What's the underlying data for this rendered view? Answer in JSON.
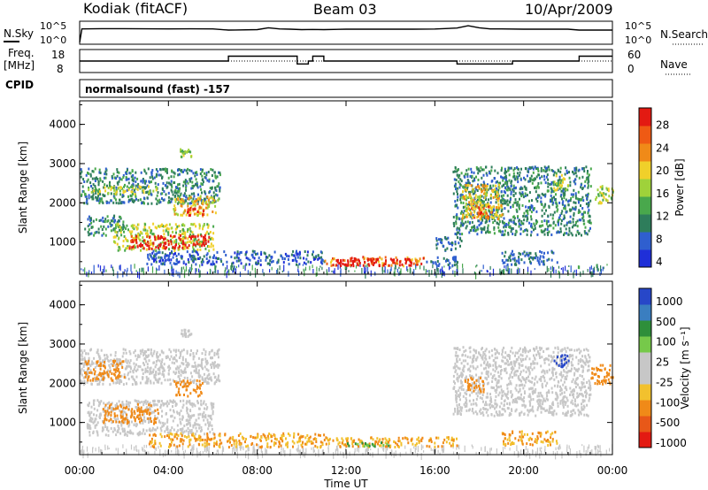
{
  "header": {
    "station": "Kodiak (fitACF)",
    "beam": "Beam 03",
    "date": "10/Apr/2009"
  },
  "top_panels": {
    "nsky_label": "N.Sky",
    "nsky_ticks": [
      "10^5",
      "10^0"
    ],
    "nsearch_label": "N.Search",
    "nsearch_ticks": [
      "10^5",
      "10^0"
    ],
    "freq_label_1": "Freq.",
    "freq_label_2": "[MHz]",
    "freq_ticks": [
      "18",
      "8"
    ],
    "nave_label": "Nave",
    "nave_ticks": [
      "60",
      "0"
    ],
    "cpid_label": "CPID",
    "cpid_text": "normalsound (fast) -157"
  },
  "colors": {
    "power": [
      "#1f2fd8",
      "#2f5fcf",
      "#2e7d5b",
      "#49a84c",
      "#9fd23a",
      "#f0d02a",
      "#f08a18",
      "#ef5a14",
      "#e31a12"
    ],
    "velocity": [
      "#2747c8",
      "#3a7ec0",
      "#2e8f3a",
      "#76c94a",
      "#c7c7c7",
      "#c7c7c7",
      "#f2c12e",
      "#f08a18",
      "#e85818",
      "#e31a12"
    ]
  },
  "chart_data": [
    {
      "type": "line",
      "title": "N.Sky / N.Search",
      "x_unit": "hours UT",
      "ylabel": "N.Sky",
      "y2label": "N.Search",
      "yscale": "log",
      "x": [
        0,
        0.1,
        1,
        2,
        3,
        4,
        5,
        6,
        6.7,
        7,
        8,
        8.5,
        9,
        9.5,
        10,
        10.5,
        11,
        12,
        13,
        14,
        15,
        16,
        17,
        17.5,
        18,
        18.5,
        19,
        20,
        21,
        22,
        22.5,
        23,
        24
      ],
      "series": [
        {
          "name": "N.Sky",
          "values": [
            1,
            3000,
            3500,
            3500,
            3200,
            3000,
            3200,
            3000,
            1500,
            1600,
            2000,
            6000,
            3000,
            2500,
            2000,
            2200,
            2000,
            2500,
            2500,
            2500,
            2500,
            2800,
            5000,
            20000,
            6000,
            3000,
            3000,
            2500,
            2500,
            2500,
            1500,
            1500,
            1500
          ]
        }
      ]
    },
    {
      "type": "line",
      "title": "Freq / Nave",
      "x_unit": "hours UT",
      "ylabel": "Freq. [MHz]",
      "y2label": "Nave",
      "ylim": [
        8,
        18
      ],
      "y2lim": [
        0,
        60
      ],
      "x": [
        0,
        0.2,
        6.7,
        6.7,
        7.5,
        7.5,
        9.8,
        9.8,
        10.3,
        10.3,
        10.5,
        10.5,
        11,
        11,
        17,
        17,
        19.5,
        19.5,
        22.5,
        22.5,
        24
      ],
      "series": [
        {
          "name": "Freq",
          "values": [
            13,
            13,
            13,
            15.5,
            15.5,
            15.5,
            15.5,
            11.5,
            11.5,
            13,
            13,
            15.5,
            15.5,
            13,
            13,
            11.5,
            11.5,
            13,
            13,
            15.5,
            15.5
          ]
        },
        {
          "name": "Nave",
          "values": [
            30,
            30,
            30,
            30,
            30,
            30,
            30,
            30,
            30,
            30,
            30,
            30,
            30,
            30,
            30,
            30,
            30,
            30,
            30,
            30,
            30
          ]
        }
      ]
    },
    {
      "type": "heatmap",
      "title": "Power",
      "xlabel": "Time UT",
      "ylabel": "Slant Range [km]",
      "x_ticks": [
        "00:00",
        "04:00",
        "08:00",
        "12:00",
        "16:00",
        "20:00",
        "00:00"
      ],
      "y_ticks": [
        "1000",
        "2000",
        "3000",
        "4000"
      ],
      "xlim": [
        0,
        24
      ],
      "ylim": [
        180,
        4600
      ],
      "colorbar_label": "Power [dB]",
      "colorbar_ticks": [
        "4",
        "8",
        "12",
        "16",
        "20",
        "24",
        "28"
      ],
      "regions": [
        {
          "t0": 0.0,
          "t1": 6.3,
          "r0": 2000,
          "r1": 2900,
          "value": 10
        },
        {
          "t0": 0.3,
          "t1": 3.5,
          "r0": 2250,
          "r1": 2450,
          "value": 16
        },
        {
          "t0": 4.2,
          "t1": 6.2,
          "r0": 1700,
          "r1": 2200,
          "value": 18
        },
        {
          "t0": 4.8,
          "t1": 5.6,
          "r0": 1700,
          "r1": 1950,
          "value": 24
        },
        {
          "t0": 0.2,
          "t1": 2.0,
          "r0": 1200,
          "r1": 1700,
          "value": 10
        },
        {
          "t0": 1.5,
          "t1": 6.0,
          "r0": 800,
          "r1": 1500,
          "value": 16
        },
        {
          "t0": 2.2,
          "t1": 5.8,
          "r0": 850,
          "r1": 1200,
          "value": 26
        },
        {
          "t0": 4.5,
          "t1": 5.0,
          "r0": 3200,
          "r1": 3400,
          "value": 14
        },
        {
          "t0": 3.0,
          "t1": 11.0,
          "r0": 450,
          "r1": 800,
          "value": 6
        },
        {
          "t0": 11.0,
          "t1": 15.5,
          "r0": 420,
          "r1": 650,
          "value": 22
        },
        {
          "t0": 11.5,
          "t1": 15.0,
          "r0": 430,
          "r1": 600,
          "value": 29
        },
        {
          "t0": 15.5,
          "t1": 17.0,
          "r0": 420,
          "r1": 650,
          "value": 8
        },
        {
          "t0": 16.8,
          "t1": 23.0,
          "r0": 1200,
          "r1": 2950,
          "value": 10
        },
        {
          "t0": 17.2,
          "t1": 19.0,
          "r0": 1600,
          "r1": 2500,
          "value": 18
        },
        {
          "t0": 17.5,
          "t1": 18.6,
          "r0": 1600,
          "r1": 1950,
          "value": 22
        },
        {
          "t0": 21.3,
          "t1": 22.0,
          "r0": 2350,
          "r1": 2750,
          "value": 16
        },
        {
          "t0": 23.2,
          "t1": 24.0,
          "r0": 2000,
          "r1": 2500,
          "value": 16
        },
        {
          "t0": 19.0,
          "t1": 21.5,
          "r0": 450,
          "r1": 800,
          "value": 8
        },
        {
          "t0": 16.0,
          "t1": 17.2,
          "r0": 800,
          "r1": 1150,
          "value": 8
        }
      ]
    },
    {
      "type": "heatmap",
      "title": "Velocity",
      "xlabel": "Time UT",
      "ylabel": "Slant Range [km]",
      "x_ticks": [
        "00:00",
        "04:00",
        "08:00",
        "12:00",
        "16:00",
        "20:00",
        "00:00"
      ],
      "y_ticks": [
        "1000",
        "2000",
        "3000",
        "4000"
      ],
      "xlim": [
        0,
        24
      ],
      "ylim": [
        180,
        4600
      ],
      "colorbar_label": "Velocity [m s⁻¹]",
      "colorbar_ticks": [
        "1000",
        "500",
        "100",
        "25",
        "-25",
        "-100",
        "-500",
        "-1000"
      ],
      "regions": [
        {
          "t0": 0.0,
          "t1": 6.3,
          "r0": 2000,
          "r1": 2900,
          "value": 0
        },
        {
          "t0": 0.2,
          "t1": 2.0,
          "r0": 2100,
          "r1": 2600,
          "value": -80
        },
        {
          "t0": 4.2,
          "t1": 5.5,
          "r0": 1700,
          "r1": 2100,
          "value": -80
        },
        {
          "t0": 0.3,
          "t1": 6.0,
          "r0": 700,
          "r1": 1600,
          "value": 0
        },
        {
          "t0": 1.0,
          "t1": 3.5,
          "r0": 1000,
          "r1": 1500,
          "value": -150
        },
        {
          "t0": 4.5,
          "t1": 5.0,
          "r0": 3200,
          "r1": 3400,
          "value": 0
        },
        {
          "t0": 3.0,
          "t1": 11.0,
          "r0": 400,
          "r1": 750,
          "value": -60
        },
        {
          "t0": 11.0,
          "t1": 17.0,
          "r0": 400,
          "r1": 650,
          "value": -60
        },
        {
          "t0": 12.0,
          "t1": 14.0,
          "r0": 420,
          "r1": 520,
          "value": 60
        },
        {
          "t0": 16.8,
          "t1": 23.0,
          "r0": 1200,
          "r1": 2950,
          "value": 0
        },
        {
          "t0": 17.3,
          "t1": 18.2,
          "r0": 1800,
          "r1": 2200,
          "value": -150
        },
        {
          "t0": 21.3,
          "t1": 22.0,
          "r0": 2450,
          "r1": 2750,
          "value": 900
        },
        {
          "t0": 23.0,
          "t1": 24.0,
          "r0": 2000,
          "r1": 2500,
          "value": -200
        },
        {
          "t0": 19.0,
          "t1": 21.5,
          "r0": 450,
          "r1": 800,
          "value": -60
        }
      ]
    }
  ],
  "time_axis_label": "Time UT"
}
